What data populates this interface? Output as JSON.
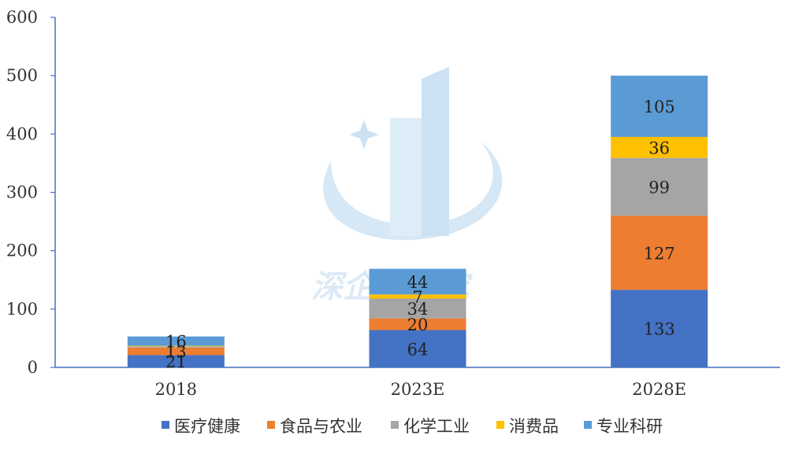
{
  "chart_data": {
    "type": "bar",
    "stacked": true,
    "categories": [
      "2018",
      "2023E",
      "2028E"
    ],
    "series": [
      {
        "name": "医疗健康",
        "color": "#4472C4",
        "values": [
          21,
          64,
          133
        ]
      },
      {
        "name": "食品与农业",
        "color": "#ED7D31",
        "values": [
          13,
          20,
          127
        ]
      },
      {
        "name": "化学工业",
        "color": "#A5A5A5",
        "values": [
          2,
          34,
          99
        ]
      },
      {
        "name": "消费品",
        "color": "#FFC000",
        "values": [
          1,
          7,
          36
        ]
      },
      {
        "name": "专业科研",
        "color": "#5B9BD5",
        "values": [
          16,
          44,
          105
        ]
      }
    ],
    "data_labels": [
      [
        "21",
        "64",
        "133"
      ],
      [
        "13",
        "20",
        "127"
      ],
      [
        "",
        "34",
        "99"
      ],
      [
        "",
        "7",
        "36"
      ],
      [
        "16",
        "44",
        "105"
      ]
    ],
    "yticks": [
      "0",
      "100",
      "200",
      "300",
      "400",
      "500",
      "600"
    ],
    "ylim": [
      0,
      600
    ],
    "title": "",
    "xlabel": "",
    "ylabel": "",
    "grid": false,
    "legend_position": "bottom"
  },
  "watermark": {
    "text": "深企投研究",
    "logo": "building-logo-icon"
  }
}
